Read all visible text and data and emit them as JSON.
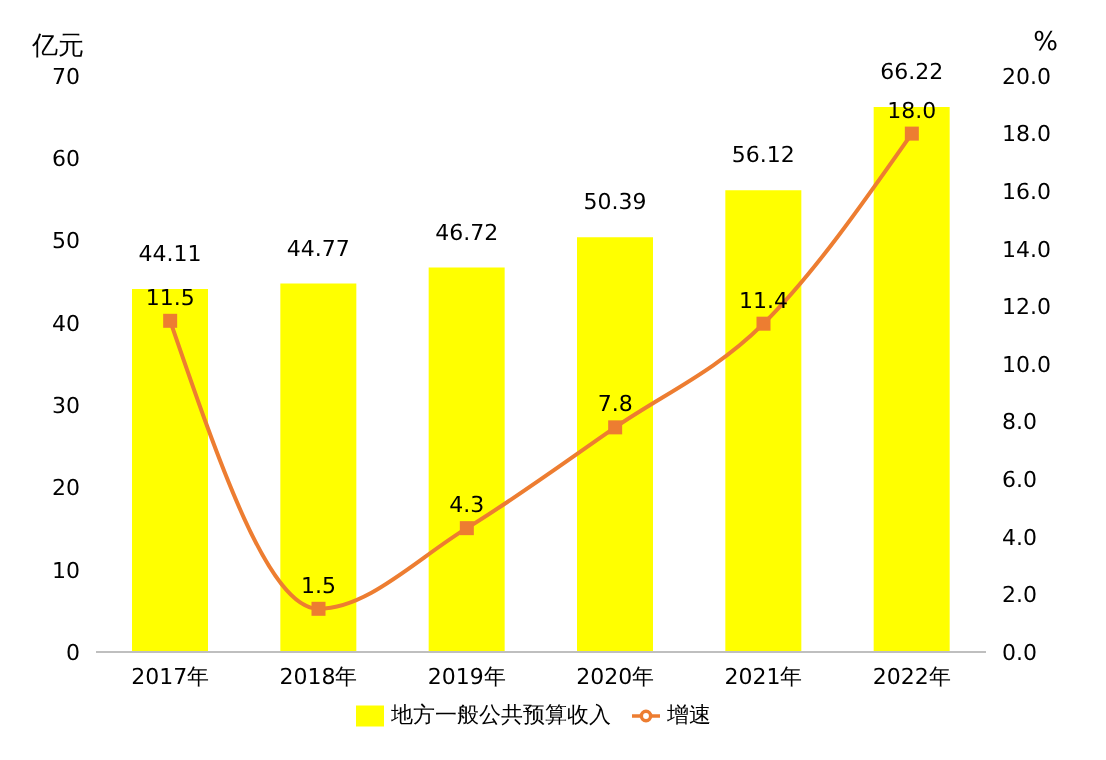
{
  "chart_data": {
    "type": "bar",
    "categories": [
      "2017年",
      "2018年",
      "2019年",
      "2020年",
      "2021年",
      "2022年"
    ],
    "ylabel": "亿元",
    "y2label": "%",
    "series": [
      {
        "name": "地方一般公共预算收入",
        "color": "#ffff00",
        "values": [
          44.11,
          44.77,
          46.72,
          50.39,
          56.12,
          66.22
        ],
        "value_labels": [
          "44.11",
          "44.77",
          "46.72",
          "50.39",
          "56.12",
          "66.22"
        ]
      },
      {
        "name": "增速",
        "type": "line",
        "axis": "y2",
        "color": "#ed7d31",
        "values": [
          11.5,
          1.5,
          4.3,
          7.8,
          11.4,
          18.0
        ],
        "value_labels": [
          "11.5",
          "1.5",
          "4.3",
          "7.8",
          "11.4",
          "18.0"
        ]
      }
    ],
    "ylim": [
      0,
      70
    ],
    "yticks": [
      0,
      10,
      20,
      30,
      40,
      50,
      60,
      70
    ],
    "y2lim": [
      0,
      20
    ],
    "y2ticks": [
      {
        "value": 0,
        "label": "0.0"
      },
      {
        "value": 2,
        "label": "2.0"
      },
      {
        "value": 4,
        "label": "4.0"
      },
      {
        "value": 6,
        "label": "6.0"
      },
      {
        "value": 8,
        "label": "8.0"
      },
      {
        "value": 10,
        "label": "10.0"
      },
      {
        "value": 12,
        "label": "12.0"
      },
      {
        "value": 14,
        "label": "14.0"
      },
      {
        "value": 16,
        "label": "16.0"
      },
      {
        "value": 18,
        "label": "18.0"
      },
      {
        "value": 20,
        "label": "20.0"
      }
    ],
    "marker": "square",
    "legend": "bottom",
    "grid": false
  }
}
